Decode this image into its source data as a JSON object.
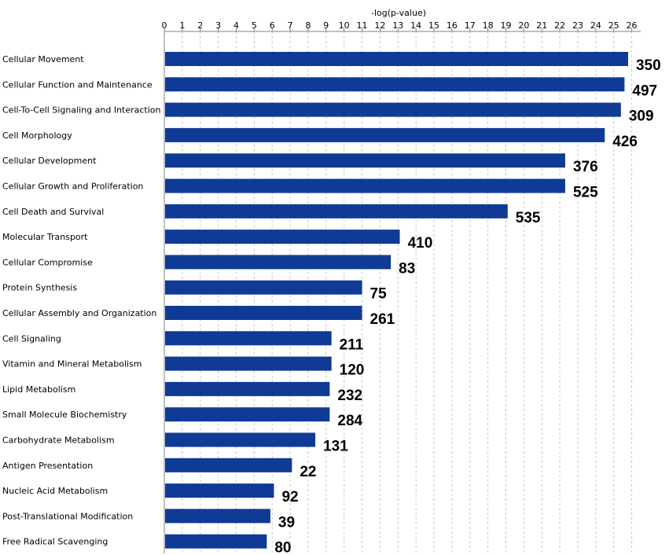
{
  "chart_data": {
    "type": "bar",
    "orientation": "horizontal",
    "xlabel": "-log(p-value)",
    "xlim": [
      0,
      26.5
    ],
    "xticks": [
      0,
      1,
      2,
      3,
      4,
      5,
      6,
      7,
      8,
      9,
      10,
      11,
      12,
      13,
      14,
      15,
      16,
      17,
      18,
      19,
      20,
      21,
      22,
      23,
      24,
      25,
      26
    ],
    "axis_position": "top",
    "grid": true,
    "bar_color": "#0f3a96",
    "categories": [
      "Cellular Movement",
      "Cellular Function and Maintenance",
      "Cell-To-Cell Signaling and Interaction",
      "Cell Morphology",
      "Cellular Development",
      "Cellular Growth and Proliferation",
      "Cell Death and Survival",
      "Molecular Transport",
      "Cellular Compromise",
      "Protein Synthesis",
      "Cellular Assembly and Organization",
      "Cell Signaling",
      "Vitamin and Mineral Metabolism",
      "Lipid Metabolism",
      "Small Molecule Biochemistry",
      "Carbohydrate Metabolism",
      "Antigen Presentation",
      "Nucleic Acid Metabolism",
      "Post-Translational Modification",
      "Free Radical Scavenging"
    ],
    "values": [
      25.8,
      25.6,
      25.4,
      24.5,
      22.3,
      22.3,
      19.1,
      13.1,
      12.6,
      11.0,
      11.0,
      9.3,
      9.3,
      9.2,
      9.2,
      8.4,
      7.1,
      6.1,
      5.9,
      5.7
    ],
    "data_labels": [
      "350",
      "497",
      "309",
      "426",
      "376",
      "525",
      "535",
      "410",
      "83",
      "75",
      "261",
      "211",
      "120",
      "232",
      "284",
      "131",
      "22",
      "92",
      "39",
      "80"
    ]
  }
}
